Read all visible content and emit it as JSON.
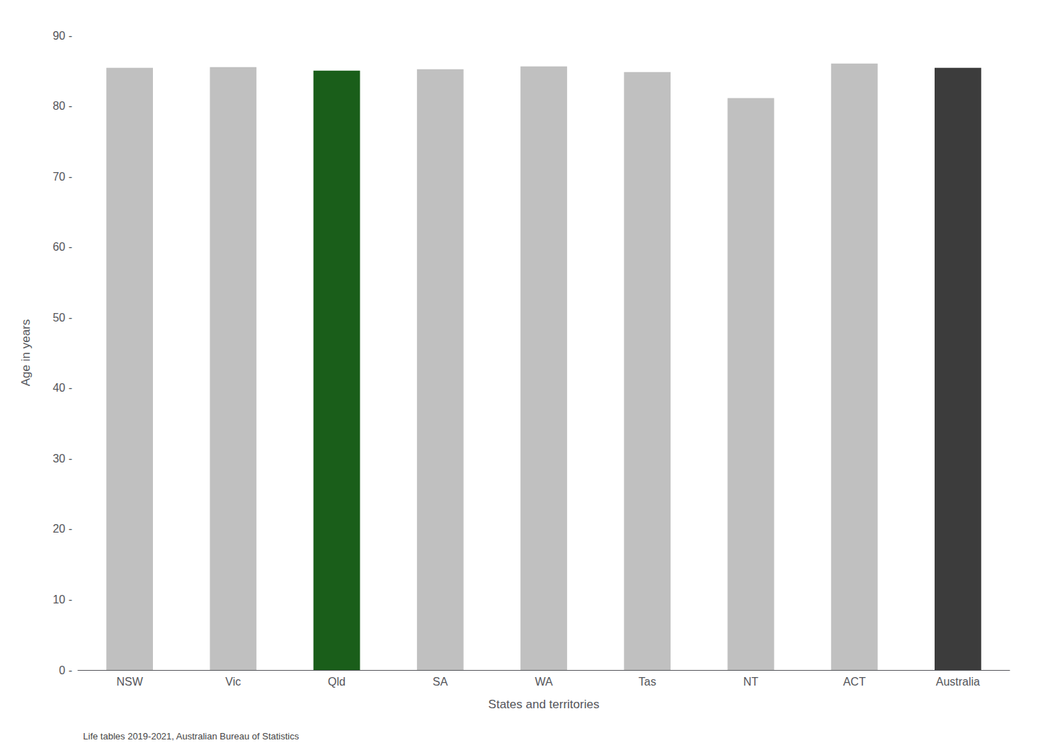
{
  "chart_data": {
    "type": "bar",
    "categories": [
      "NSW",
      "Vic",
      "Qld",
      "SA",
      "WA",
      "Tas",
      "NT",
      "ACT",
      "Australia"
    ],
    "values": [
      85.4,
      85.5,
      85.0,
      85.2,
      85.6,
      84.8,
      81.1,
      86.0,
      85.4
    ],
    "colors": [
      "#c0c0c0",
      "#c0c0c0",
      "#1a5e1a",
      "#c0c0c0",
      "#c0c0c0",
      "#c0c0c0",
      "#c0c0c0",
      "#c0c0c0",
      "#3c3c3c"
    ],
    "xlabel": "States and territories",
    "ylabel": "Age in years",
    "ylim": [
      0,
      90
    ],
    "yticks": [
      {
        "value": 0,
        "label": "0 -"
      },
      {
        "value": 10,
        "label": "10 -"
      },
      {
        "value": 20,
        "label": "20 -"
      },
      {
        "value": 30,
        "label": "30 -"
      },
      {
        "value": 40,
        "label": "40 -"
      },
      {
        "value": 50,
        "label": "50 -"
      },
      {
        "value": 60,
        "label": "60 -"
      },
      {
        "value": 70,
        "label": "70 -"
      },
      {
        "value": 80,
        "label": "80 -"
      },
      {
        "value": 90,
        "label": "90 -"
      }
    ],
    "grid": false,
    "caption": "Life tables 2019-2021, Australian Bureau of Statistics"
  }
}
